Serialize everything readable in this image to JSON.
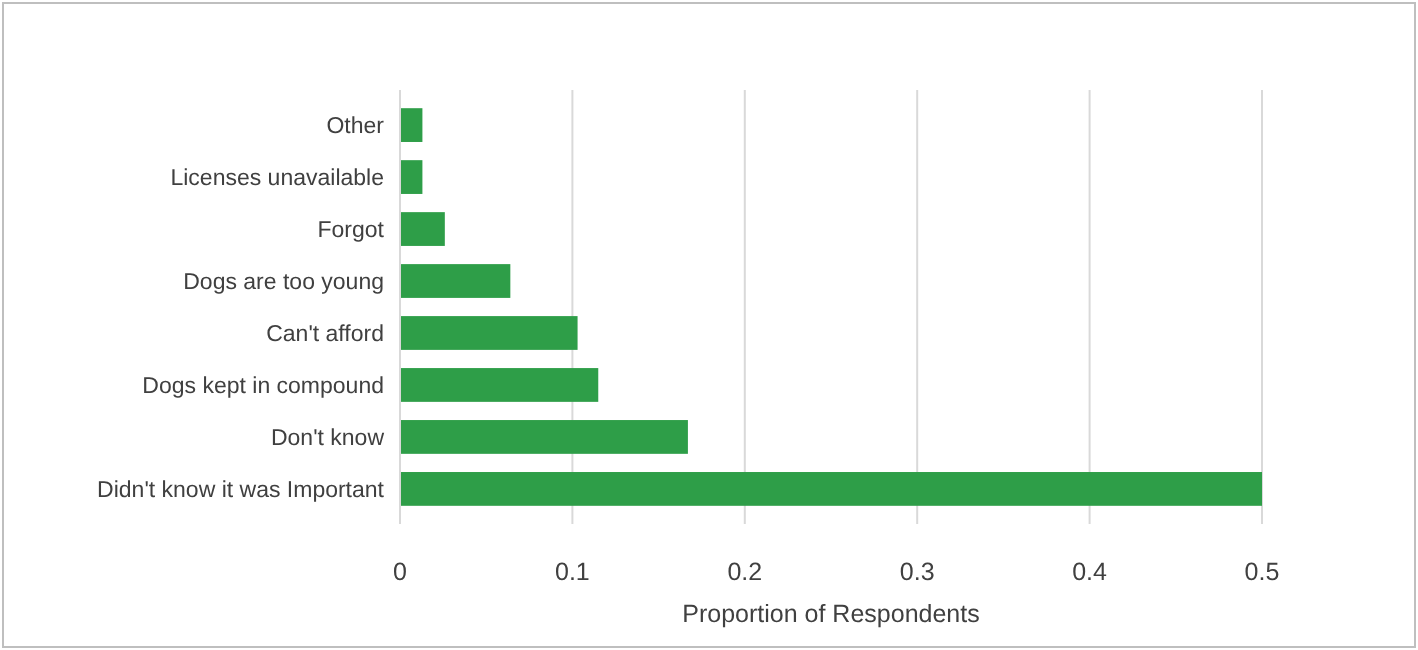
{
  "chart_data": {
    "type": "bar",
    "orientation": "horizontal",
    "xlabel": "Proportion of Respondents",
    "categories": [
      "Other",
      "Licenses unavailable",
      "Forgot",
      "Dogs are too young",
      "Can't afford",
      "Dogs kept in compound",
      "Don't know",
      "Didn't know it was Important"
    ],
    "values": [
      0.013,
      0.013,
      0.026,
      0.064,
      0.103,
      0.115,
      0.167,
      0.5
    ],
    "color": "#2e9e48",
    "xlim": [
      0,
      0.5
    ],
    "xticks": [
      0,
      0.1,
      0.2,
      0.3,
      0.4,
      0.5
    ],
    "grid": "x"
  }
}
